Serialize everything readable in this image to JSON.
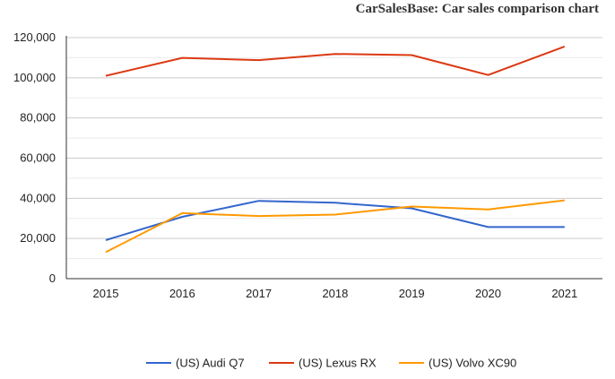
{
  "chart_data": {
    "type": "line",
    "title": "CarSalesBase: Car sales comparison chart",
    "xlabel": "",
    "ylabel": "",
    "x": [
      "2015",
      "2016",
      "2017",
      "2018",
      "2019",
      "2020",
      "2021"
    ],
    "ylim": [
      0,
      120000
    ],
    "yticks": [
      0,
      20000,
      40000,
      60000,
      80000,
      100000,
      120000
    ],
    "ytick_labels": [
      "0",
      "20,000",
      "40,000",
      "60,000",
      "80,000",
      "100,000",
      "120,000"
    ],
    "grid": true,
    "legend_position": "bottom",
    "series": [
      {
        "name": "(US) Audi Q7",
        "color": "#3366cc",
        "values": [
          19200,
          30800,
          38700,
          37800,
          35000,
          25700,
          25700
        ]
      },
      {
        "name": "(US) Lexus RX",
        "color": "#dc3912",
        "values": [
          101000,
          109900,
          108800,
          111900,
          111300,
          101400,
          115600
        ]
      },
      {
        "name": "(US) Volvo XC90",
        "color": "#ff9900",
        "values": [
          13200,
          32600,
          31200,
          31900,
          35900,
          34500,
          39000
        ]
      }
    ]
  }
}
